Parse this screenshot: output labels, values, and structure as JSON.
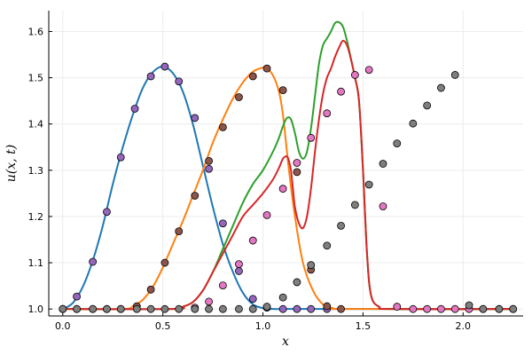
{
  "chart_data": {
    "type": "line",
    "title": "",
    "xlabel": "x",
    "ylabel": "u(x, t)",
    "xlim": [
      -0.07,
      2.3
    ],
    "ylim": [
      0.985,
      1.645
    ],
    "xticks": [
      0.0,
      0.5,
      1.0,
      1.5,
      2.0
    ],
    "xtick_labels": [
      "0.0",
      "0.5",
      "1.0",
      "1.5",
      "2.0"
    ],
    "yticks": [
      1.0,
      1.1,
      1.2,
      1.3,
      1.4,
      1.5,
      1.6
    ],
    "ytick_labels": [
      "1.0",
      "1.1",
      "1.2",
      "1.3",
      "1.4",
      "1.5",
      "1.6"
    ],
    "grid": true,
    "legend": "none",
    "series": [
      {
        "name": "line-blue",
        "kind": "line",
        "color": "#1f77b4",
        "x": [
          0.0,
          0.05,
          0.1,
          0.15,
          0.2,
          0.25,
          0.3,
          0.35,
          0.4,
          0.45,
          0.5,
          0.55,
          0.6,
          0.65,
          0.7,
          0.75,
          0.8,
          0.85,
          0.9,
          0.95,
          1.0,
          1.05,
          1.1,
          1.2,
          1.3,
          2.25
        ],
        "y": [
          1.0,
          1.013,
          1.048,
          1.105,
          1.18,
          1.27,
          1.35,
          1.42,
          1.478,
          1.512,
          1.524,
          1.51,
          1.47,
          1.4,
          1.31,
          1.22,
          1.14,
          1.08,
          1.035,
          1.01,
          1.002,
          1.0,
          1.0,
          1.0,
          1.0,
          1.0
        ]
      },
      {
        "name": "line-orange",
        "kind": "line",
        "color": "#ff7f0e",
        "x": [
          0.0,
          0.3,
          0.35,
          0.4,
          0.45,
          0.5,
          0.55,
          0.6,
          0.65,
          0.7,
          0.75,
          0.8,
          0.85,
          0.9,
          0.95,
          1.0,
          1.02,
          1.05,
          1.08,
          1.1,
          1.13,
          1.16,
          1.2,
          1.25,
          1.3,
          1.35,
          1.4,
          2.25
        ],
        "y": [
          1.0,
          1.0,
          1.006,
          1.02,
          1.048,
          1.09,
          1.14,
          1.19,
          1.245,
          1.3,
          1.36,
          1.41,
          1.455,
          1.49,
          1.513,
          1.522,
          1.52,
          1.505,
          1.47,
          1.42,
          1.3,
          1.2,
          1.1,
          1.04,
          1.01,
          1.002,
          1.0,
          1.0
        ]
      },
      {
        "name": "line-green",
        "kind": "line",
        "color": "#2ca02c",
        "x": [
          0.0,
          0.55,
          0.6,
          0.65,
          0.7,
          0.75,
          0.8,
          0.85,
          0.9,
          0.95,
          1.0,
          1.05,
          1.08,
          1.1,
          1.12,
          1.14,
          1.16,
          1.18,
          1.2,
          1.22,
          1.24,
          1.26,
          1.28,
          1.3,
          1.32,
          1.34,
          1.36,
          1.38,
          1.4,
          1.42,
          1.44,
          1.46,
          1.48,
          1.5,
          1.52,
          1.54,
          1.58,
          1.65,
          2.25
        ],
        "y": [
          1.0,
          1.0,
          1.005,
          1.015,
          1.04,
          1.08,
          1.13,
          1.18,
          1.23,
          1.27,
          1.3,
          1.34,
          1.37,
          1.395,
          1.413,
          1.41,
          1.38,
          1.34,
          1.325,
          1.34,
          1.39,
          1.46,
          1.53,
          1.57,
          1.585,
          1.6,
          1.618,
          1.62,
          1.61,
          1.58,
          1.54,
          1.5,
          1.45,
          1.3,
          1.12,
          1.03,
          1.005,
          1.0,
          1.0
        ]
      },
      {
        "name": "line-red",
        "kind": "line",
        "color": "#d62728",
        "x": [
          0.0,
          0.55,
          0.6,
          0.65,
          0.7,
          0.75,
          0.8,
          0.85,
          0.9,
          0.95,
          1.0,
          1.05,
          1.08,
          1.1,
          1.12,
          1.13,
          1.14,
          1.15,
          1.16,
          1.18,
          1.2,
          1.22,
          1.24,
          1.26,
          1.28,
          1.3,
          1.32,
          1.34,
          1.36,
          1.38,
          1.4,
          1.42,
          1.44,
          1.46,
          1.48,
          1.5,
          1.52,
          1.54,
          1.58,
          1.65,
          2.25
        ],
        "y": [
          1.0,
          1.0,
          1.005,
          1.015,
          1.04,
          1.08,
          1.12,
          1.16,
          1.2,
          1.225,
          1.25,
          1.28,
          1.305,
          1.325,
          1.33,
          1.32,
          1.3,
          1.26,
          1.22,
          1.185,
          1.175,
          1.2,
          1.26,
          1.34,
          1.41,
          1.465,
          1.5,
          1.52,
          1.545,
          1.565,
          1.58,
          1.57,
          1.54,
          1.5,
          1.45,
          1.3,
          1.12,
          1.03,
          1.005,
          1.0,
          1.0
        ]
      },
      {
        "name": "markers-purple",
        "kind": "scatter",
        "color": "#9467bd",
        "x": [
          0.0,
          0.07,
          0.15,
          0.22,
          0.29,
          0.36,
          0.44,
          0.51,
          0.58,
          0.66,
          0.73,
          0.8,
          0.88,
          0.95,
          1.02,
          1.1,
          1.17,
          1.24,
          1.32
        ],
        "y": [
          1.0,
          1.027,
          1.102,
          1.21,
          1.328,
          1.433,
          1.503,
          1.524,
          1.492,
          1.413,
          1.303,
          1.185,
          1.082,
          1.022,
          1.003,
          1.0,
          1.0,
          1.0,
          1.0
        ]
      },
      {
        "name": "markers-brown",
        "kind": "scatter",
        "color": "#8c564b",
        "x": [
          0.0,
          0.07,
          0.15,
          0.22,
          0.29,
          0.37,
          0.44,
          0.51,
          0.58,
          0.66,
          0.73,
          0.8,
          0.88,
          0.95,
          1.02,
          1.1,
          1.17,
          1.24,
          1.32,
          1.39
        ],
        "y": [
          1.0,
          1.0,
          1.0,
          1.0,
          1.0,
          1.006,
          1.042,
          1.1,
          1.168,
          1.245,
          1.32,
          1.393,
          1.458,
          1.503,
          1.52,
          1.473,
          1.296,
          1.085,
          1.006,
          1.0
        ]
      },
      {
        "name": "markers-pink",
        "kind": "scatter",
        "color": "#e377c2",
        "x": [
          0.66,
          0.73,
          0.8,
          0.88,
          0.95,
          1.02,
          1.1,
          1.17,
          1.24,
          1.32,
          1.39,
          1.46,
          1.53,
          1.6,
          1.67,
          1.75,
          1.82,
          1.89,
          1.96,
          2.03,
          2.1,
          2.18,
          2.25
        ],
        "y": [
          1.003,
          1.016,
          1.051,
          1.097,
          1.148,
          1.203,
          1.26,
          1.316,
          1.37,
          1.423,
          1.47,
          1.506,
          1.517,
          1.222,
          1.005,
          1.0,
          1.0,
          1.0,
          1.0,
          1.0,
          1.0,
          1.0,
          1.0
        ]
      },
      {
        "name": "markers-gray",
        "kind": "scatter",
        "color": "#7f7f7f",
        "x": [
          0.0,
          0.07,
          0.15,
          0.22,
          0.29,
          0.37,
          0.44,
          0.51,
          0.58,
          0.66,
          0.73,
          0.8,
          0.88,
          0.95,
          1.02,
          1.1,
          1.17,
          1.24,
          1.32,
          1.39,
          1.46,
          1.53,
          1.6,
          1.67,
          1.75,
          1.82,
          1.89,
          1.96,
          2.03,
          2.1,
          2.18,
          2.25
        ],
        "y": [
          1.0,
          1.0,
          1.0,
          1.0,
          1.0,
          1.0,
          1.0,
          1.0,
          1.0,
          1.0,
          1.0,
          1.0,
          1.0,
          1.0,
          1.005,
          1.025,
          1.058,
          1.095,
          1.137,
          1.18,
          1.225,
          1.269,
          1.314,
          1.358,
          1.401,
          1.44,
          1.478,
          1.506,
          1.008,
          1.0,
          1.0,
          1.0
        ]
      }
    ]
  }
}
